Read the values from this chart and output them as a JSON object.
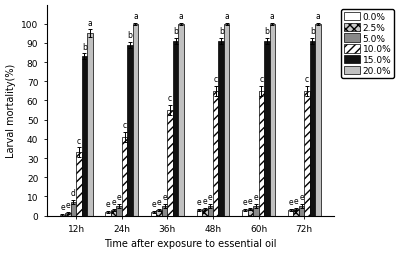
{
  "groups": [
    "12h",
    "24h",
    "36h",
    "48h",
    "60h",
    "72h"
  ],
  "concentrations": [
    "0.0%",
    "2.5%",
    "5.0%",
    "10.0%",
    "15.0%",
    "20.0%"
  ],
  "values": [
    [
      0.5,
      2.0,
      2.0,
      3.0,
      3.0,
      3.0
    ],
    [
      1.5,
      3.0,
      3.0,
      3.5,
      3.5,
      3.5
    ],
    [
      7.0,
      5.0,
      5.0,
      5.0,
      5.0,
      5.0
    ],
    [
      33.0,
      41.0,
      55.0,
      65.0,
      65.0,
      65.0
    ],
    [
      83.0,
      89.0,
      91.0,
      91.0,
      91.0,
      91.0
    ],
    [
      95.0,
      100.0,
      100.0,
      100.0,
      100.0,
      100.0
    ]
  ],
  "errors": [
    [
      0.5,
      0.5,
      0.5,
      0.5,
      0.5,
      0.5
    ],
    [
      0.5,
      0.5,
      0.5,
      0.5,
      0.5,
      0.5
    ],
    [
      1.0,
      1.0,
      1.0,
      1.0,
      1.0,
      1.0
    ],
    [
      2.5,
      2.5,
      2.5,
      2.5,
      2.5,
      2.5
    ],
    [
      1.5,
      1.5,
      1.5,
      1.5,
      1.5,
      1.5
    ],
    [
      2.0,
      0.5,
      0.5,
      0.5,
      0.5,
      0.5
    ]
  ],
  "letters": [
    [
      "e",
      "e",
      "e",
      "e",
      "e",
      "e"
    ],
    [
      "e",
      "e",
      "e",
      "e",
      "e",
      "e"
    ],
    [
      "d",
      "e",
      "e",
      "e",
      "e",
      "e"
    ],
    [
      "c",
      "c",
      "c",
      "c",
      "c",
      "c"
    ],
    [
      "b",
      "b",
      "b",
      "b",
      "b",
      "b"
    ],
    [
      "a",
      "a",
      "a",
      "a",
      "a",
      "a"
    ]
  ],
  "ylabel": "Larval mortality(%)",
  "xlabel": "Time after exposure to essential oil",
  "ylim": [
    0,
    110
  ],
  "yticks": [
    0,
    10,
    20,
    30,
    40,
    50,
    60,
    70,
    80,
    90,
    100
  ],
  "bar_width": 0.12,
  "axis_fontsize": 7,
  "tick_fontsize": 6.5,
  "legend_fontsize": 6.5,
  "letter_fontsize": 5.5
}
